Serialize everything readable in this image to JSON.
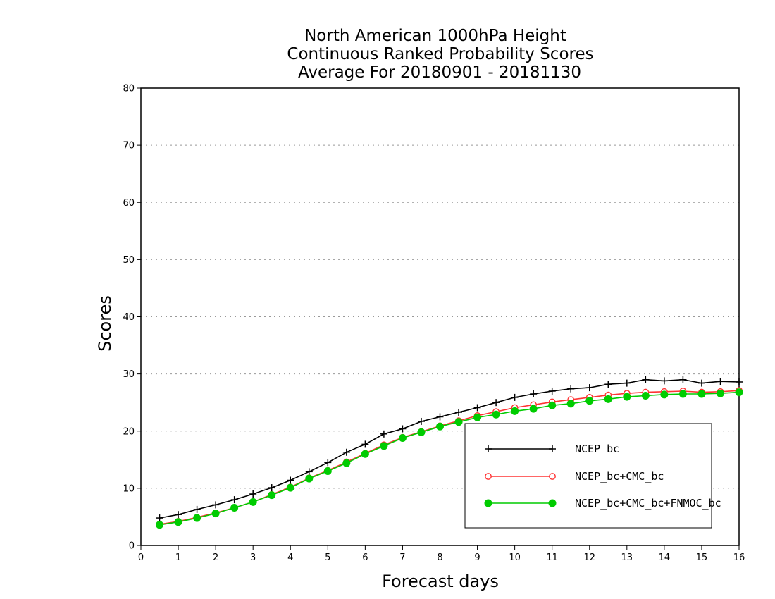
{
  "chart_data": {
    "type": "line",
    "title_lines": [
      "North American 1000hPa Height",
      "Continuous Ranked Probability Scores",
      "Average For 20180901 - 20181130"
    ],
    "xlabel": "Forecast days",
    "ylabel": "Scores",
    "xlim": [
      0,
      16
    ],
    "ylim": [
      0,
      80
    ],
    "x_ticks": [
      "0",
      "1",
      "2",
      "3",
      "4",
      "5",
      "6",
      "7",
      "8",
      "9",
      "10",
      "11",
      "12",
      "13",
      "14",
      "15",
      "16"
    ],
    "y_ticks": [
      "0",
      "10",
      "20",
      "30",
      "40",
      "50",
      "60",
      "70",
      "80"
    ],
    "grid": "horizontal dotted",
    "legend_position": "bottom-right",
    "x": [
      0.5,
      1,
      1.5,
      2,
      2.5,
      3,
      3.5,
      4,
      4.5,
      5,
      5.5,
      6,
      6.5,
      7,
      7.5,
      8,
      8.5,
      9,
      9.5,
      10,
      10.5,
      11,
      11.5,
      12,
      12.5,
      13,
      13.5,
      14,
      14.5,
      15,
      15.5,
      16
    ],
    "series": [
      {
        "name": "NCEP_bc",
        "color": "#000000",
        "marker": "plus",
        "values": [
          4.8,
          5.4,
          6.3,
          7.1,
          8.0,
          9.0,
          10.1,
          11.4,
          12.9,
          14.5,
          16.3,
          17.7,
          19.5,
          20.4,
          21.7,
          22.5,
          23.3,
          24.1,
          25.0,
          25.9,
          26.5,
          27.0,
          27.4,
          27.6,
          28.2,
          28.4,
          29.0,
          28.8,
          29.0,
          28.4,
          28.7,
          28.6
        ]
      },
      {
        "name": "NCEP_bc+CMC_bc",
        "color": "#ff3333",
        "marker": "open-circle",
        "values": [
          3.7,
          4.2,
          4.9,
          5.7,
          6.6,
          7.6,
          8.9,
          10.2,
          11.8,
          13.1,
          14.6,
          16.1,
          17.6,
          18.9,
          19.9,
          20.9,
          21.8,
          22.7,
          23.4,
          24.1,
          24.6,
          25.1,
          25.5,
          25.9,
          26.3,
          26.6,
          26.8,
          26.9,
          27.0,
          26.8,
          26.9,
          27.1
        ]
      },
      {
        "name": "NCEP_bc+CMC_bc+FNMOC_bc",
        "color": "#00cc00",
        "marker": "filled-circle",
        "values": [
          3.6,
          4.1,
          4.8,
          5.6,
          6.6,
          7.6,
          8.8,
          10.1,
          11.7,
          13.0,
          14.4,
          16.0,
          17.4,
          18.8,
          19.8,
          20.8,
          21.6,
          22.4,
          22.9,
          23.5,
          23.9,
          24.5,
          24.8,
          25.3,
          25.6,
          26.0,
          26.2,
          26.4,
          26.5,
          26.5,
          26.6,
          26.8
        ]
      }
    ]
  }
}
